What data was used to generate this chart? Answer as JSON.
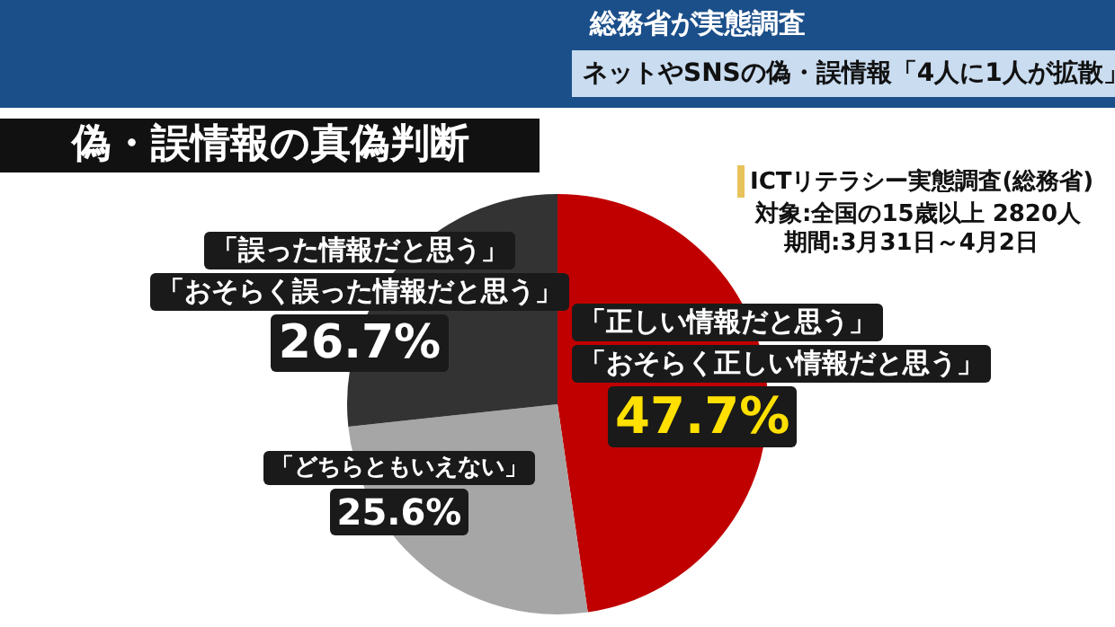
{
  "chart_data": {
    "type": "pie",
    "title": "偽・誤情報の真偽判断",
    "subtitle": "ネットやSNSの偽・誤情報「4人に1人が拡散」",
    "annotations": [
      "総務省が実態調査",
      "ICTリテラシー実態調査(総務省)",
      "対象:全国の15歳以上 2820人",
      "期間:3月31日～4月2日"
    ],
    "categories": [
      "「正しい情報だと思う」「おそらく正しい情報だと思う」",
      "「どちらともいえない」",
      "「誤った情報だと思う」「おそらく誤った情報だと思う」"
    ],
    "values": [
      47.7,
      25.6,
      26.7
    ],
    "value_labels": [
      "47.7%",
      "25.6%",
      "26.7%"
    ],
    "colors": [
      "#c00000",
      "#a6a6a6",
      "#333333"
    ],
    "legend": false
  }
}
